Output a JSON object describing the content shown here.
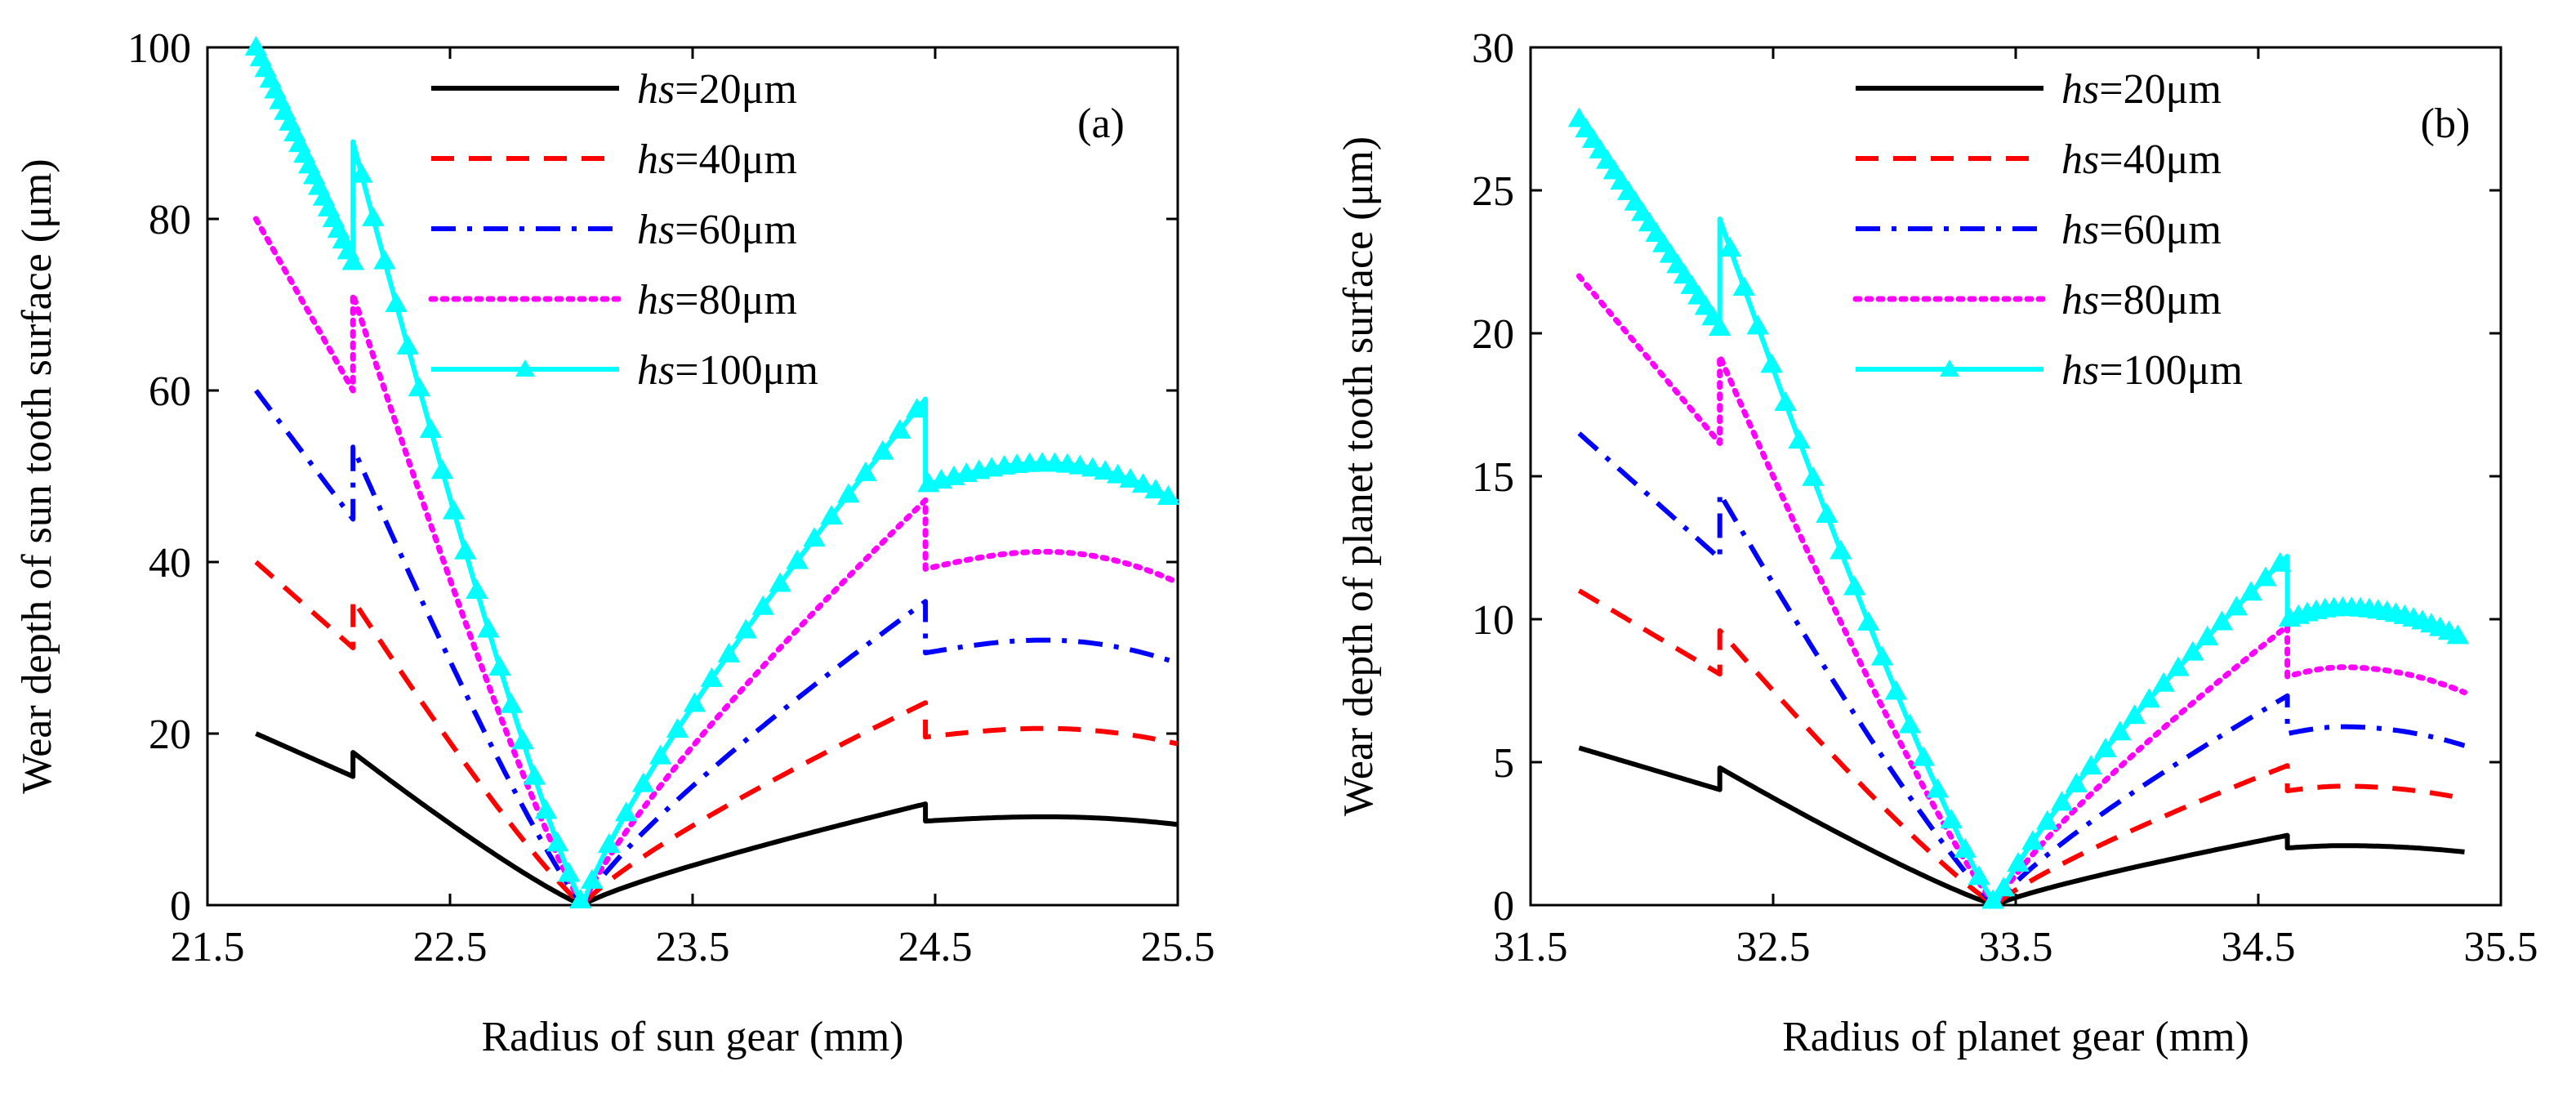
{
  "colors": {
    "hs20": "#000000",
    "hs40": "#ff0000",
    "hs60": "#0000ff",
    "hs80": "#ff00ff",
    "hs100": "#00ffff",
    "axis": "#000000"
  },
  "chart_data": [
    {
      "type": "line",
      "panel_label": "(a)",
      "xlabel": "Radius of sun gear (mm)",
      "ylabel": "Wear depth of sun tooth surface (μm)",
      "xlim": [
        21.5,
        25.5
      ],
      "ylim": [
        0,
        100
      ],
      "xticks": [
        "21.5",
        "22.5",
        "23.5",
        "24.5",
        "25.5"
      ],
      "yticks": [
        "0",
        "20",
        "40",
        "60",
        "80",
        "100"
      ],
      "legend_position": "top-center",
      "segments": [
        {
          "x0": 21.7,
          "x1": 22.1,
          "y0": 1.0,
          "y1": 0.75
        },
        {
          "x0": 22.1,
          "x1": 23.05,
          "y0": 0.89,
          "y1": 0.0
        },
        {
          "x0": 23.05,
          "x1": 24.46,
          "y0": 0.0,
          "y1": 0.59
        },
        {
          "x0": 24.46,
          "x1": 25.5,
          "plateau": true,
          "y0": 0.49,
          "ypeak": 0.515,
          "xpeak": 24.95,
          "y1": 0.47
        }
      ],
      "series": [
        {
          "name": "hs=20μm",
          "label_italic": "hs",
          "label_rest": "=20μm",
          "color_key": "hs20",
          "style": "solid",
          "scale": 20
        },
        {
          "name": "hs=40μm",
          "label_italic": "hs",
          "label_rest": "=40μm",
          "color_key": "hs40",
          "style": "dashed",
          "scale": 40
        },
        {
          "name": "hs=60μm",
          "label_italic": "hs",
          "label_rest": "=60μm",
          "color_key": "hs60",
          "style": "dashdot",
          "scale": 60
        },
        {
          "name": "hs=80μm",
          "label_italic": "hs",
          "label_rest": "=80μm",
          "color_key": "hs80",
          "style": "dotted",
          "scale": 80
        },
        {
          "name": "hs=100μm",
          "label_italic": "hs",
          "label_rest": "=100μm",
          "color_key": "hs100",
          "style": "solid-triangle",
          "scale": 100
        }
      ]
    },
    {
      "type": "line",
      "panel_label": "(b)",
      "xlabel": "Radius of planet gear (mm)",
      "ylabel": "Wear depth of planet tooth surface (μm)",
      "xlim": [
        31.5,
        35.5
      ],
      "ylim": [
        0,
        30
      ],
      "xticks": [
        "31.5",
        "32.5",
        "33.5",
        "34.5",
        "35.5"
      ],
      "yticks": [
        "0",
        "5",
        "10",
        "15",
        "20",
        "25",
        "30"
      ],
      "legend_position": "top-center",
      "segments": [
        {
          "x0": 31.7,
          "x1": 32.28,
          "y0": 0.275,
          "y1": 0.202
        },
        {
          "x0": 32.28,
          "x1": 33.42,
          "y0": 0.24,
          "y1": 0.0
        },
        {
          "x0": 33.42,
          "x1": 34.62,
          "y0": 0.0,
          "y1": 0.122
        },
        {
          "x0": 34.62,
          "x1": 35.35,
          "plateau": true,
          "y0": 0.1,
          "ypeak": 0.104,
          "xpeak": 34.85,
          "y1": 0.093
        }
      ],
      "series": [
        {
          "name": "hs=20μm",
          "label_italic": "hs",
          "label_rest": "=20μm",
          "color_key": "hs20",
          "style": "solid",
          "scale": 20
        },
        {
          "name": "hs=40μm",
          "label_italic": "hs",
          "label_rest": "=40μm",
          "color_key": "hs40",
          "style": "dashed",
          "scale": 40
        },
        {
          "name": "hs=60μm",
          "label_italic": "hs",
          "label_rest": "=60μm",
          "color_key": "hs60",
          "style": "dashdot",
          "scale": 60
        },
        {
          "name": "hs=80μm",
          "label_italic": "hs",
          "label_rest": "=80μm",
          "color_key": "hs80",
          "style": "dotted",
          "scale": 80
        },
        {
          "name": "hs=100μm",
          "label_italic": "hs",
          "label_rest": "=100μm",
          "color_key": "hs100",
          "style": "solid-triangle",
          "scale": 100
        }
      ]
    }
  ]
}
